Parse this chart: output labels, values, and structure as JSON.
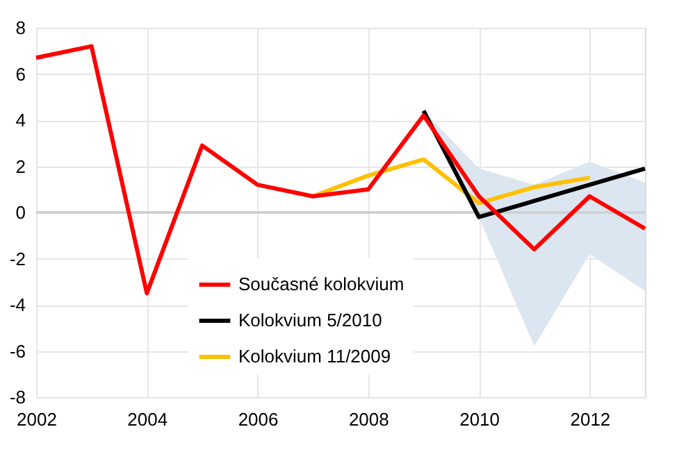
{
  "chart_data": {
    "type": "line",
    "x": [
      2002,
      2003,
      2004,
      2005,
      2006,
      2007,
      2008,
      2009,
      2010,
      2011,
      2012,
      2013
    ],
    "series": [
      {
        "name": "Současné kolokvium",
        "color": "#ff0000",
        "values": [
          6.7,
          7.2,
          -3.5,
          2.9,
          1.2,
          0.7,
          1.0,
          4.2,
          0.7,
          -1.6,
          0.7,
          -0.7
        ]
      },
      {
        "name": "Kolokvium 5/2010",
        "color": "#000000",
        "x": [
          2009,
          2010,
          2011,
          2012,
          2013
        ],
        "values": [
          4.4,
          -0.2,
          0.5,
          1.2,
          1.9
        ],
        "lower": [
          4.4,
          -0.2,
          -5.8,
          -1.8,
          -3.4
        ],
        "upper": [
          4.4,
          1.9,
          1.2,
          2.2,
          1.3
        ]
      },
      {
        "name": "Kolokvium 11/2009",
        "color": "#ffc000",
        "x": [
          2007,
          2008,
          2009,
          2010,
          2011,
          2012
        ],
        "values": [
          0.7,
          1.6,
          2.3,
          0.4,
          1.1,
          1.5
        ]
      }
    ],
    "xlim": [
      2002,
      2013
    ],
    "xticks": [
      2002,
      2004,
      2006,
      2008,
      2010,
      2012
    ],
    "ylim": [
      -8,
      8
    ],
    "yticks": [
      -8,
      -6,
      -4,
      -2,
      0,
      2,
      4,
      6,
      8
    ],
    "ref_lines": [
      {
        "axis": "y",
        "value": 0,
        "color": "#d0d0d0"
      }
    ],
    "grid": true,
    "legend": "bottom",
    "marker": "none",
    "line_style": "solid"
  }
}
